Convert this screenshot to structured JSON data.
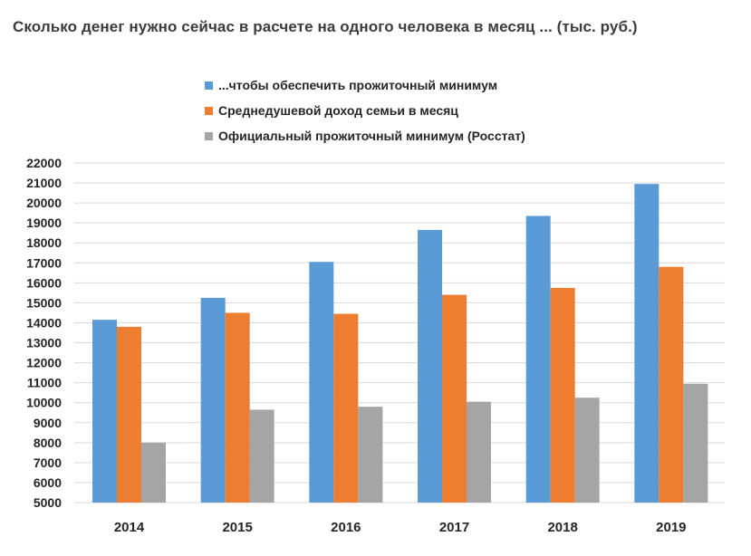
{
  "chart_data": {
    "type": "bar",
    "title": "Сколько денег нужно сейчас в расчете на одного человека в месяц ... (тыс. руб.)",
    "categories": [
      "2014",
      "2015",
      "2016",
      "2017",
      "2018",
      "2019"
    ],
    "series": [
      {
        "name": "...чтобы обеспечить прожиточный минимум",
        "color": "#5b9bd5",
        "values": [
          14150,
          15250,
          17050,
          18650,
          19350,
          20950
        ]
      },
      {
        "name": "Среднедушевой доход семьи в месяц",
        "color": "#ed7d31",
        "values": [
          13800,
          14500,
          14450,
          15400,
          15750,
          16800
        ]
      },
      {
        "name": "Официальный прожиточный минимум (Росстат)",
        "color": "#a5a5a5",
        "values": [
          8000,
          9650,
          9800,
          10050,
          10250,
          10950
        ]
      }
    ],
    "ylim": [
      5000,
      22000
    ],
    "yticks": [
      5000,
      6000,
      7000,
      8000,
      9000,
      10000,
      11000,
      12000,
      13000,
      14000,
      15000,
      16000,
      17000,
      18000,
      19000,
      20000,
      21000,
      22000
    ],
    "xlabel": "",
    "ylabel": "",
    "grid": true,
    "legend_position": "top"
  }
}
